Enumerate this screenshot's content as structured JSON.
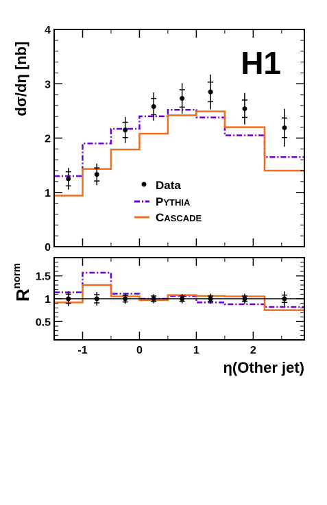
{
  "chart_data": [
    {
      "type": "line",
      "panel": "main",
      "ylabel": "dσ/dη [nb]",
      "ylim": [
        0,
        4
      ],
      "yticks": [
        "0",
        "1",
        "2",
        "3",
        "4"
      ],
      "xlim": [
        -1.5,
        2.9
      ],
      "logo": "H1",
      "legend": {
        "placement": "center",
        "entries": [
          "Data",
          "Pythia",
          "Cascade"
        ]
      },
      "bin_edges": [
        -1.5,
        -1.0,
        -0.5,
        0.0,
        0.5,
        1.0,
        1.5,
        2.2,
        2.9
      ],
      "data": {
        "name": "Data",
        "x": [
          -1.25,
          -0.75,
          -0.25,
          0.25,
          0.75,
          1.25,
          1.85,
          2.55
        ],
        "y": [
          1.25,
          1.33,
          2.15,
          2.58,
          2.73,
          2.85,
          2.54,
          2.19
        ],
        "err_stat": [
          0.13,
          0.12,
          0.14,
          0.15,
          0.16,
          0.18,
          0.16,
          0.18
        ],
        "err_tot": [
          0.2,
          0.2,
          0.24,
          0.26,
          0.28,
          0.32,
          0.29,
          0.35
        ]
      },
      "series": [
        {
          "name": "Pythia",
          "color": "#6a00d8",
          "style": "dash-dot",
          "values": [
            1.3,
            1.9,
            2.17,
            2.4,
            2.52,
            2.38,
            2.05,
            1.65
          ]
        },
        {
          "name": "Cascade",
          "color": "#f06e1e",
          "style": "solid",
          "values": [
            0.94,
            1.43,
            1.79,
            2.08,
            2.42,
            2.49,
            2.2,
            1.4
          ]
        }
      ]
    },
    {
      "type": "line",
      "panel": "ratio",
      "ylabel": "R",
      "ylabel_sup": "norm",
      "xlabel": "η(Other jet)",
      "ylim": [
        0.1,
        1.9
      ],
      "yticks": [
        "0.5",
        "1",
        "1.5"
      ],
      "xlim": [
        -1.5,
        2.9
      ],
      "xticks": [
        "-1",
        "0",
        "1",
        "2"
      ],
      "bin_edges": [
        -1.5,
        -1.0,
        -0.5,
        0.0,
        0.5,
        1.0,
        1.5,
        2.2,
        2.9
      ],
      "data": {
        "name": "Data",
        "x": [
          -1.25,
          -0.75,
          -0.25,
          0.25,
          0.75,
          1.25,
          1.85,
          2.55
        ],
        "y": [
          1.0,
          1.0,
          1.0,
          1.0,
          1.0,
          1.0,
          1.0,
          1.0
        ],
        "err_stat": [
          0.1,
          0.09,
          0.07,
          0.06,
          0.06,
          0.06,
          0.06,
          0.08
        ],
        "err_tot": [
          0.16,
          0.15,
          0.11,
          0.1,
          0.1,
          0.11,
          0.11,
          0.16
        ]
      },
      "series": [
        {
          "name": "Pythia",
          "color": "#6a00d8",
          "style": "dash-dot",
          "values": [
            1.14,
            1.57,
            1.11,
            1.0,
            1.06,
            0.92,
            0.88,
            0.82
          ]
        },
        {
          "name": "Cascade",
          "color": "#f06e1e",
          "style": "solid",
          "values": [
            0.92,
            1.3,
            1.05,
            0.97,
            1.08,
            1.06,
            1.05,
            0.75
          ]
        }
      ]
    }
  ]
}
